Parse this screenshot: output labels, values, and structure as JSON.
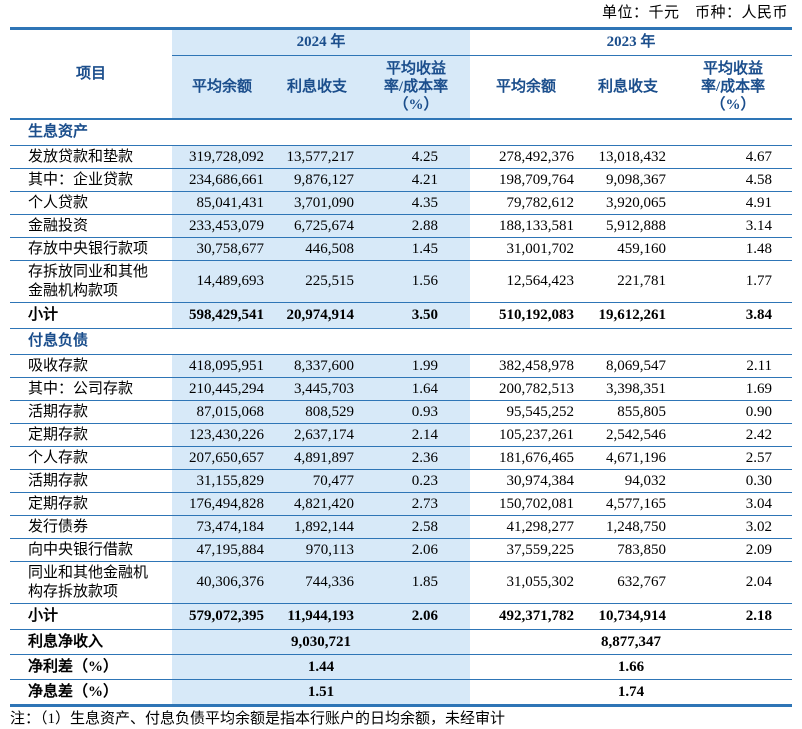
{
  "unit_note": "单位：千元　币种：人民币",
  "footnote": "注：（1）生息资产、付息负债平均余额是指本行账户的日均余额，未经审计",
  "colors": {
    "accent": "#2e75b6",
    "band": "#d7e9f8",
    "header_text": "#1b4e8c"
  },
  "header": {
    "item": "项目",
    "years": [
      "2024 年",
      "2023 年"
    ],
    "columns": [
      "平均余额",
      "利息收支",
      "平均收益\n率/成本率\n（%）"
    ]
  },
  "rows": [
    {
      "type": "section",
      "label": "生息资产"
    },
    {
      "type": "data",
      "label": "发放贷款和垫款",
      "indent": 0,
      "values": [
        "319,728,092",
        "13,577,217",
        "4.25",
        "278,492,376",
        "13,018,432",
        "4.67"
      ]
    },
    {
      "type": "data",
      "label": "其中：企业贷款",
      "indent": 1,
      "values": [
        "234,686,661",
        "9,876,127",
        "4.21",
        "198,709,764",
        "9,098,367",
        "4.58"
      ]
    },
    {
      "type": "data",
      "label": "个人贷款",
      "indent": 2,
      "values": [
        "85,041,431",
        "3,701,090",
        "4.35",
        "79,782,612",
        "3,920,065",
        "4.91"
      ]
    },
    {
      "type": "data",
      "label": "金融投资",
      "indent": 0,
      "values": [
        "233,453,079",
        "6,725,674",
        "2.88",
        "188,133,581",
        "5,912,888",
        "3.14"
      ]
    },
    {
      "type": "data",
      "label": "存放中央银行款项",
      "indent": 0,
      "values": [
        "30,758,677",
        "446,508",
        "1.45",
        "31,001,702",
        "459,160",
        "1.48"
      ]
    },
    {
      "type": "data",
      "label": "存拆放同业和其他\n金融机构款项",
      "indent": 0,
      "values": [
        "14,489,693",
        "225,515",
        "1.56",
        "12,564,423",
        "221,781",
        "1.77"
      ]
    },
    {
      "type": "subtotal",
      "label": "小计",
      "values": [
        "598,429,541",
        "20,974,914",
        "3.50",
        "510,192,083",
        "19,612,261",
        "3.84"
      ]
    },
    {
      "type": "section",
      "label": "付息负债"
    },
    {
      "type": "data",
      "label": "吸收存款",
      "indent": 0,
      "values": [
        "418,095,951",
        "8,337,600",
        "1.99",
        "382,458,978",
        "8,069,547",
        "2.11"
      ]
    },
    {
      "type": "data",
      "label": "其中：公司存款",
      "indent": 1,
      "values": [
        "210,445,294",
        "3,445,703",
        "1.64",
        "200,782,513",
        "3,398,351",
        "1.69"
      ]
    },
    {
      "type": "data",
      "label": "活期存款",
      "indent": 3,
      "values": [
        "87,015,068",
        "808,529",
        "0.93",
        "95,545,252",
        "855,805",
        "0.90"
      ]
    },
    {
      "type": "data",
      "label": "定期存款",
      "indent": 3,
      "values": [
        "123,430,226",
        "2,637,174",
        "2.14",
        "105,237,261",
        "2,542,546",
        "2.42"
      ]
    },
    {
      "type": "data",
      "label": "个人存款",
      "indent": 2,
      "values": [
        "207,650,657",
        "4,891,897",
        "2.36",
        "181,676,465",
        "4,671,196",
        "2.57"
      ]
    },
    {
      "type": "data",
      "label": "活期存款",
      "indent": 3,
      "values": [
        "31,155,829",
        "70,477",
        "0.23",
        "30,974,384",
        "94,032",
        "0.30"
      ]
    },
    {
      "type": "data",
      "label": "定期存款",
      "indent": 3,
      "values": [
        "176,494,828",
        "4,821,420",
        "2.73",
        "150,702,081",
        "4,577,165",
        "3.04"
      ]
    },
    {
      "type": "data",
      "label": "发行债券",
      "indent": 0,
      "values": [
        "73,474,184",
        "1,892,144",
        "2.58",
        "41,298,277",
        "1,248,750",
        "3.02"
      ]
    },
    {
      "type": "data",
      "label": "向中央银行借款",
      "indent": 0,
      "values": [
        "47,195,884",
        "970,113",
        "2.06",
        "37,559,225",
        "783,850",
        "2.09"
      ]
    },
    {
      "type": "data",
      "label": "同业和其他金融机\n构存拆放款项",
      "indent": 0,
      "values": [
        "40,306,376",
        "744,336",
        "1.85",
        "31,055,302",
        "632,767",
        "2.04"
      ]
    },
    {
      "type": "subtotal",
      "label": "小计",
      "values": [
        "579,072,395",
        "11,944,193",
        "2.06",
        "492,371,782",
        "10,734,914",
        "2.18"
      ]
    },
    {
      "type": "span",
      "label": "利息净收入",
      "values": [
        "9,030,721",
        "8,877,347"
      ]
    },
    {
      "type": "span",
      "label": "净利差（%）",
      "values": [
        "1.44",
        "1.66"
      ]
    },
    {
      "type": "span",
      "label": "净息差（%）",
      "values": [
        "1.51",
        "1.74"
      ]
    }
  ]
}
